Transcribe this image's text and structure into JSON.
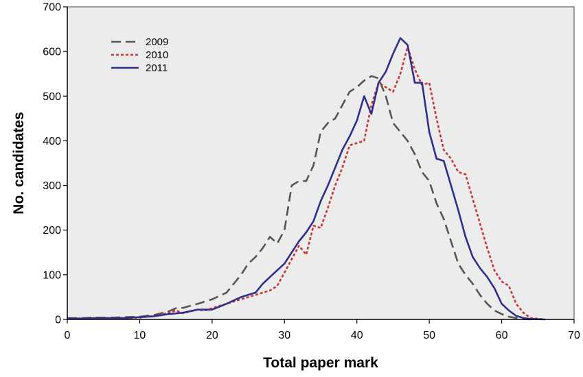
{
  "chart_data": {
    "type": "line",
    "xlabel": "Total paper mark",
    "ylabel": "No. candidates",
    "xlim": [
      0,
      70
    ],
    "ylim": [
      0,
      700
    ],
    "x_ticks": [
      0,
      10,
      20,
      30,
      40,
      50,
      60,
      70
    ],
    "y_ticks": [
      0,
      100,
      200,
      300,
      400,
      500,
      600,
      700
    ],
    "x_tick_labels": [
      "0",
      "10",
      "20",
      "30",
      "40",
      "50",
      "60",
      "70"
    ],
    "y_tick_labels": [
      "0",
      "100",
      "200",
      "300",
      "400",
      "500",
      "600",
      "700"
    ],
    "grid": false,
    "legend_position": "top-left",
    "plot_background": "#ececec",
    "series": [
      {
        "name": "2009",
        "color": "#555555",
        "dash": "dashed",
        "x": [
          0,
          2,
          4,
          6,
          8,
          10,
          12,
          14,
          15,
          16,
          18,
          20,
          22,
          24,
          25,
          26,
          27,
          28,
          29,
          30,
          31,
          32,
          33,
          34,
          35,
          36,
          37,
          38,
          39,
          40,
          41,
          42,
          43,
          44,
          45,
          46,
          47,
          48,
          49,
          50,
          51,
          52,
          53,
          54,
          55,
          56,
          57,
          58,
          59,
          60,
          61,
          62,
          63,
          64
        ],
        "y": [
          3,
          3,
          4,
          4,
          5,
          6,
          10,
          18,
          25,
          26,
          35,
          45,
          60,
          100,
          125,
          140,
          160,
          185,
          170,
          200,
          300,
          310,
          310,
          345,
          420,
          440,
          450,
          480,
          510,
          520,
          535,
          545,
          540,
          500,
          440,
          420,
          400,
          370,
          330,
          310,
          260,
          225,
          175,
          125,
          100,
          80,
          55,
          35,
          20,
          12,
          6,
          3,
          1,
          0
        ]
      },
      {
        "name": "2010",
        "color": "#cc3333",
        "dash": "dotted",
        "x": [
          0,
          2,
          4,
          6,
          8,
          10,
          12,
          14,
          15,
          16,
          18,
          19,
          20,
          22,
          24,
          25,
          26,
          28,
          29,
          30,
          31,
          32,
          33,
          34,
          35,
          36,
          37,
          38,
          39,
          40,
          41,
          42,
          43,
          44,
          45,
          46,
          47,
          48,
          49,
          50,
          51,
          52,
          53,
          54,
          55,
          56,
          57,
          58,
          59,
          60,
          61,
          62,
          63,
          64,
          66
        ],
        "y": [
          2,
          2,
          3,
          3,
          3,
          4,
          8,
          15,
          20,
          14,
          22,
          20,
          25,
          35,
          45,
          50,
          55,
          65,
          75,
          105,
          135,
          165,
          145,
          210,
          205,
          250,
          300,
          340,
          390,
          395,
          400,
          480,
          530,
          520,
          510,
          550,
          610,
          560,
          525,
          530,
          450,
          380,
          360,
          330,
          325,
          270,
          215,
          160,
          110,
          85,
          75,
          35,
          15,
          3,
          0
        ]
      },
      {
        "name": "2011",
        "color": "#2e2e8e",
        "dash": "solid",
        "x": [
          0,
          2,
          4,
          6,
          8,
          10,
          12,
          14,
          16,
          18,
          20,
          22,
          24,
          26,
          27,
          28,
          29,
          30,
          31,
          32,
          33,
          34,
          35,
          36,
          37,
          38,
          39,
          40,
          41,
          42,
          43,
          44,
          45,
          46,
          47,
          48,
          49,
          50,
          51,
          52,
          53,
          54,
          55,
          56,
          57,
          58,
          59,
          60,
          61,
          62,
          63,
          64,
          66
        ],
        "y": [
          2,
          2,
          3,
          3,
          3,
          5,
          7,
          12,
          15,
          22,
          22,
          35,
          50,
          60,
          80,
          95,
          110,
          125,
          150,
          175,
          195,
          220,
          265,
          300,
          340,
          380,
          410,
          445,
          500,
          460,
          530,
          555,
          595,
          630,
          615,
          530,
          530,
          420,
          360,
          355,
          300,
          245,
          185,
          140,
          115,
          95,
          70,
          35,
          20,
          8,
          3,
          1,
          0
        ]
      }
    ]
  }
}
